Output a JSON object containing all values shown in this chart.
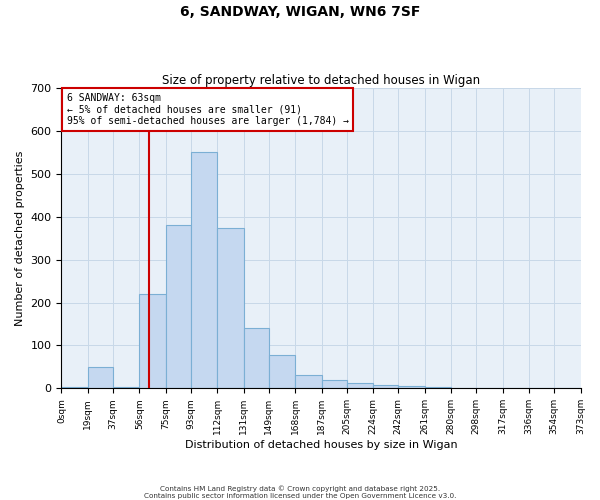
{
  "title": "6, SANDWAY, WIGAN, WN6 7SF",
  "subtitle": "Size of property relative to detached houses in Wigan",
  "xlabel": "Distribution of detached houses by size in Wigan",
  "ylabel": "Number of detached properties",
  "bin_edges": [
    0,
    19,
    37,
    56,
    75,
    93,
    112,
    131,
    149,
    168,
    187,
    205,
    224,
    242,
    261,
    280,
    298,
    317,
    336,
    354,
    373
  ],
  "bin_counts": [
    2,
    50,
    3,
    220,
    380,
    550,
    375,
    140,
    78,
    32,
    20,
    12,
    8,
    5,
    2,
    0,
    1,
    0,
    1,
    0
  ],
  "bar_color": "#c5d8f0",
  "bar_edge_color": "#7bafd4",
  "vertical_line_x": 63,
  "vertical_line_color": "#cc0000",
  "annotation_title": "6 SANDWAY: 63sqm",
  "annotation_line1": "← 5% of detached houses are smaller (91)",
  "annotation_line2": "95% of semi-detached houses are larger (1,784) →",
  "annotation_box_color": "#ffffff",
  "annotation_box_edge_color": "#cc0000",
  "ylim": [
    0,
    700
  ],
  "yticks": [
    0,
    100,
    200,
    300,
    400,
    500,
    600,
    700
  ],
  "grid_color": "#c8d8e8",
  "background_color": "#e8f0f8",
  "footer1": "Contains HM Land Registry data © Crown copyright and database right 2025.",
  "footer2": "Contains public sector information licensed under the Open Government Licence v3.0.",
  "tick_labels": [
    "0sqm",
    "19sqm",
    "37sqm",
    "56sqm",
    "75sqm",
    "93sqm",
    "112sqm",
    "131sqm",
    "149sqm",
    "168sqm",
    "187sqm",
    "205sqm",
    "224sqm",
    "242sqm",
    "261sqm",
    "280sqm",
    "298sqm",
    "317sqm",
    "336sqm",
    "354sqm",
    "373sqm"
  ]
}
